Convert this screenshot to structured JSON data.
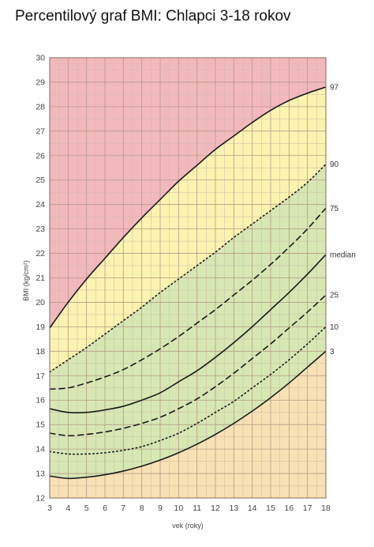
{
  "title": "Percentilový graf BMI: Chlapci 3-18 rokov",
  "chart_data": {
    "type": "line",
    "xlabel": "vek (roky)",
    "ylabel": "BMI (kg/cm²)",
    "xlim": [
      3,
      18
    ],
    "ylim": [
      12,
      30
    ],
    "x_ticks": [
      3,
      4,
      5,
      6,
      7,
      8,
      9,
      10,
      11,
      12,
      13,
      14,
      15,
      16,
      17,
      18
    ],
    "y_ticks": [
      12,
      13,
      14,
      15,
      16,
      17,
      18,
      19,
      20,
      21,
      22,
      23,
      24,
      25,
      26,
      27,
      28,
      29,
      30
    ],
    "grid": true,
    "zone_colors": {
      "overweight": "#f2b9bd",
      "risk": "#fbf3b0",
      "normal": "#d6e7b4",
      "underweight": "#f8e1b4"
    },
    "series": [
      {
        "name": "97",
        "style": "solid",
        "x": [
          3,
          4,
          5,
          6,
          7,
          8,
          9,
          10,
          11,
          12,
          13,
          14,
          15,
          16,
          17,
          18
        ],
        "values": [
          18.95,
          20.0,
          20.95,
          21.8,
          22.65,
          23.45,
          24.2,
          24.95,
          25.6,
          26.25,
          26.8,
          27.35,
          27.85,
          28.25,
          28.55,
          28.8
        ]
      },
      {
        "name": "90",
        "style": "dotted",
        "x": [
          3,
          4,
          5,
          6,
          7,
          8,
          9,
          10,
          11,
          12,
          13,
          14,
          15,
          16,
          17,
          18
        ],
        "values": [
          17.15,
          17.65,
          18.15,
          18.7,
          19.25,
          19.8,
          20.4,
          20.95,
          21.5,
          22.05,
          22.65,
          23.2,
          23.75,
          24.3,
          24.9,
          25.65
        ]
      },
      {
        "name": "75",
        "style": "dashed",
        "x": [
          3,
          4,
          5,
          6,
          7,
          8,
          9,
          10,
          11,
          12,
          13,
          14,
          15,
          16,
          17,
          18
        ],
        "values": [
          16.45,
          16.5,
          16.7,
          16.95,
          17.25,
          17.65,
          18.1,
          18.6,
          19.15,
          19.7,
          20.3,
          20.9,
          21.55,
          22.25,
          23.0,
          23.85
        ]
      },
      {
        "name": "median",
        "style": "solid",
        "x": [
          3,
          4,
          5,
          6,
          7,
          8,
          9,
          10,
          11,
          12,
          13,
          14,
          15,
          16,
          17,
          18
        ],
        "values": [
          15.65,
          15.5,
          15.5,
          15.6,
          15.75,
          16.0,
          16.3,
          16.75,
          17.2,
          17.75,
          18.35,
          19.0,
          19.7,
          20.4,
          21.15,
          21.95
        ]
      },
      {
        "name": "25",
        "style": "dashed",
        "x": [
          3,
          4,
          5,
          6,
          7,
          8,
          9,
          10,
          11,
          12,
          13,
          14,
          15,
          16,
          17,
          18
        ],
        "values": [
          14.65,
          14.55,
          14.6,
          14.7,
          14.85,
          15.05,
          15.3,
          15.65,
          16.05,
          16.55,
          17.1,
          17.7,
          18.3,
          18.95,
          19.6,
          20.3
        ]
      },
      {
        "name": "10",
        "style": "dotted",
        "x": [
          3,
          4,
          5,
          6,
          7,
          8,
          9,
          10,
          11,
          12,
          13,
          14,
          15,
          16,
          17,
          18
        ],
        "values": [
          13.9,
          13.8,
          13.8,
          13.85,
          13.95,
          14.1,
          14.35,
          14.65,
          15.05,
          15.5,
          15.95,
          16.5,
          17.05,
          17.65,
          18.3,
          19.0
        ]
      },
      {
        "name": "3",
        "style": "solid",
        "x": [
          3,
          4,
          5,
          6,
          7,
          8,
          9,
          10,
          11,
          12,
          13,
          14,
          15,
          16,
          17,
          18
        ],
        "values": [
          12.9,
          12.8,
          12.85,
          12.95,
          13.1,
          13.3,
          13.55,
          13.85,
          14.2,
          14.6,
          15.05,
          15.55,
          16.1,
          16.7,
          17.35,
          18.0
        ]
      }
    ]
  }
}
